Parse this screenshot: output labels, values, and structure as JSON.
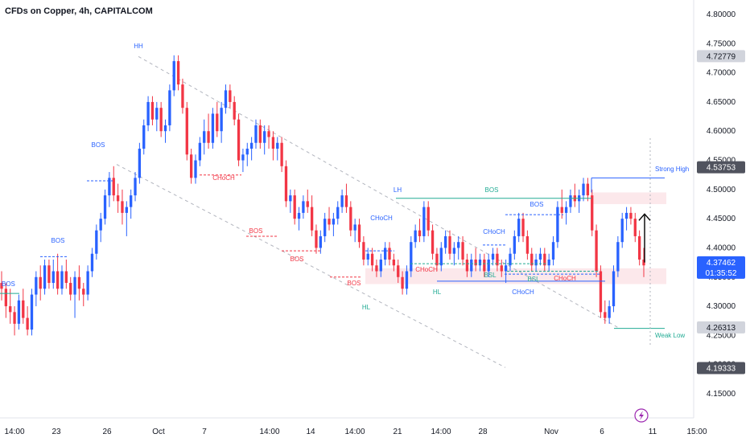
{
  "chart_data": {
    "type": "candlestick",
    "title": "CFDs on Copper, 4h, CAPITALCOM",
    "ylim": [
      4.12,
      4.82
    ],
    "y_ticks": [
      "4.80000",
      "4.75000",
      "4.70000",
      "4.65000",
      "4.60000",
      "4.55000",
      "4.50000",
      "4.45000",
      "4.40000",
      "4.35000",
      "4.30000",
      "4.25000",
      "4.20000",
      "4.15000"
    ],
    "x_ticks": [
      "14:00",
      "23",
      "26",
      "Oct",
      "7",
      "14:00",
      "14",
      "14:00",
      "21",
      "14:00",
      "28",
      "Nov",
      "6",
      "11",
      "15:00"
    ],
    "price_tags": [
      {
        "value": 4.72779,
        "label": "4.72779",
        "style": "gray"
      },
      {
        "value": 4.53753,
        "label": "4.53753",
        "style": "dark"
      },
      {
        "value": 4.37462,
        "label": "4.37462",
        "style": "blue",
        "sub": "01:35:52"
      },
      {
        "value": 4.26313,
        "label": "4.26313",
        "style": "gray"
      },
      {
        "value": 4.19333,
        "label": "4.19333",
        "style": "dark"
      }
    ],
    "labels": {
      "hh": "HH",
      "lh": "LH",
      "hl": "HL",
      "hl2": "HL",
      "bos": "BOS",
      "choch": "CHoCH",
      "bsl": "BSL",
      "strong_high": "Strong High",
      "weak_low": "Weak Low"
    },
    "colors": {
      "up": "#2962ff",
      "down": "#f23645",
      "structure_green": "#22ab94",
      "zone": "#fce4e8"
    },
    "candles": [
      [
        4.34,
        4.36,
        4.31,
        4.33
      ],
      [
        4.33,
        4.34,
        4.28,
        4.3
      ],
      [
        4.3,
        4.33,
        4.27,
        4.29
      ],
      [
        4.29,
        4.3,
        4.25,
        4.27
      ],
      [
        4.27,
        4.32,
        4.26,
        4.31
      ],
      [
        4.31,
        4.33,
        4.27,
        4.28
      ],
      [
        4.28,
        4.3,
        4.25,
        4.26
      ],
      [
        4.26,
        4.33,
        4.25,
        4.32
      ],
      [
        4.32,
        4.36,
        4.3,
        4.35
      ],
      [
        4.35,
        4.37,
        4.31,
        4.33
      ],
      [
        4.33,
        4.38,
        4.32,
        4.37
      ],
      [
        4.37,
        4.38,
        4.33,
        4.34
      ],
      [
        4.34,
        4.38,
        4.33,
        4.36
      ],
      [
        4.36,
        4.39,
        4.32,
        4.33
      ],
      [
        4.33,
        4.37,
        4.32,
        4.36
      ],
      [
        4.36,
        4.38,
        4.33,
        4.34
      ],
      [
        4.34,
        4.35,
        4.31,
        4.32
      ],
      [
        4.32,
        4.36,
        4.28,
        4.35
      ],
      [
        4.35,
        4.37,
        4.31,
        4.33
      ],
      [
        4.33,
        4.34,
        4.3,
        4.32
      ],
      [
        4.32,
        4.37,
        4.31,
        4.36
      ],
      [
        4.36,
        4.4,
        4.35,
        4.39
      ],
      [
        4.39,
        4.44,
        4.38,
        4.43
      ],
      [
        4.43,
        4.46,
        4.41,
        4.45
      ],
      [
        4.45,
        4.5,
        4.44,
        4.49
      ],
      [
        4.49,
        4.53,
        4.47,
        4.52
      ],
      [
        4.52,
        4.54,
        4.48,
        4.49
      ],
      [
        4.49,
        4.51,
        4.46,
        4.48
      ],
      [
        4.48,
        4.5,
        4.44,
        4.46
      ],
      [
        4.46,
        4.48,
        4.42,
        4.47
      ],
      [
        4.47,
        4.5,
        4.45,
        4.49
      ],
      [
        4.49,
        4.53,
        4.48,
        4.52
      ],
      [
        4.52,
        4.58,
        4.51,
        4.57
      ],
      [
        4.57,
        4.62,
        4.56,
        4.61
      ],
      [
        4.61,
        4.66,
        4.6,
        4.65
      ],
      [
        4.65,
        4.66,
        4.61,
        4.62
      ],
      [
        4.62,
        4.65,
        4.6,
        4.64
      ],
      [
        4.64,
        4.65,
        4.59,
        4.6
      ],
      [
        4.6,
        4.62,
        4.58,
        4.61
      ],
      [
        4.61,
        4.68,
        4.6,
        4.67
      ],
      [
        4.67,
        4.73,
        4.66,
        4.72
      ],
      [
        4.72,
        4.73,
        4.67,
        4.68
      ],
      [
        4.68,
        4.69,
        4.63,
        4.64
      ],
      [
        4.64,
        4.65,
        4.55,
        4.56
      ],
      [
        4.56,
        4.57,
        4.51,
        4.52
      ],
      [
        4.52,
        4.56,
        4.51,
        4.55
      ],
      [
        4.55,
        4.59,
        4.54,
        4.58
      ],
      [
        4.58,
        4.62,
        4.56,
        4.6
      ],
      [
        4.6,
        4.63,
        4.57,
        4.58
      ],
      [
        4.58,
        4.64,
        4.57,
        4.63
      ],
      [
        4.63,
        4.65,
        4.59,
        4.6
      ],
      [
        4.6,
        4.65,
        4.58,
        4.64
      ],
      [
        4.64,
        4.68,
        4.63,
        4.67
      ],
      [
        4.67,
        4.68,
        4.64,
        4.65
      ],
      [
        4.65,
        4.66,
        4.61,
        4.62
      ],
      [
        4.62,
        4.63,
        4.54,
        4.55
      ],
      [
        4.55,
        4.57,
        4.53,
        4.56
      ],
      [
        4.56,
        4.58,
        4.54,
        4.57
      ],
      [
        4.57,
        4.59,
        4.55,
        4.58
      ],
      [
        4.58,
        4.62,
        4.57,
        4.61
      ],
      [
        4.61,
        4.62,
        4.57,
        4.58
      ],
      [
        4.58,
        4.61,
        4.56,
        4.6
      ],
      [
        4.6,
        4.61,
        4.57,
        4.59
      ],
      [
        4.59,
        4.6,
        4.55,
        4.57
      ],
      [
        4.57,
        4.59,
        4.55,
        4.58
      ],
      [
        4.58,
        4.59,
        4.53,
        4.54
      ],
      [
        4.54,
        4.55,
        4.47,
        4.48
      ],
      [
        4.48,
        4.5,
        4.46,
        4.49
      ],
      [
        4.49,
        4.5,
        4.44,
        4.45
      ],
      [
        4.45,
        4.47,
        4.43,
        4.46
      ],
      [
        4.46,
        4.49,
        4.45,
        4.48
      ],
      [
        4.48,
        4.5,
        4.46,
        4.47
      ],
      [
        4.47,
        4.49,
        4.42,
        4.43
      ],
      [
        4.43,
        4.44,
        4.39,
        4.4
      ],
      [
        4.4,
        4.43,
        4.39,
        4.42
      ],
      [
        4.42,
        4.46,
        4.41,
        4.45
      ],
      [
        4.45,
        4.47,
        4.43,
        4.44
      ],
      [
        4.44,
        4.46,
        4.42,
        4.45
      ],
      [
        4.45,
        4.48,
        4.44,
        4.47
      ],
      [
        4.47,
        4.5,
        4.46,
        4.49
      ],
      [
        4.49,
        4.51,
        4.46,
        4.47
      ],
      [
        4.47,
        4.48,
        4.42,
        4.43
      ],
      [
        4.43,
        4.45,
        4.41,
        4.44
      ],
      [
        4.44,
        4.45,
        4.4,
        4.41
      ],
      [
        4.41,
        4.42,
        4.37,
        4.38
      ],
      [
        4.38,
        4.4,
        4.37,
        4.39
      ],
      [
        4.39,
        4.4,
        4.36,
        4.37
      ],
      [
        4.37,
        4.38,
        4.35,
        4.36
      ],
      [
        4.36,
        4.39,
        4.35,
        4.38
      ],
      [
        4.38,
        4.41,
        4.37,
        4.4
      ],
      [
        4.4,
        4.41,
        4.37,
        4.38
      ],
      [
        4.38,
        4.39,
        4.36,
        4.37
      ],
      [
        4.37,
        4.38,
        4.34,
        4.35
      ],
      [
        4.35,
        4.36,
        4.32,
        4.33
      ],
      [
        4.33,
        4.37,
        4.32,
        4.36
      ],
      [
        4.36,
        4.42,
        4.35,
        4.41
      ],
      [
        4.41,
        4.44,
        4.4,
        4.43
      ],
      [
        4.43,
        4.45,
        4.41,
        4.42
      ],
      [
        4.42,
        4.48,
        4.41,
        4.47
      ],
      [
        4.47,
        4.48,
        4.42,
        4.43
      ],
      [
        4.43,
        4.44,
        4.38,
        4.39
      ],
      [
        4.39,
        4.4,
        4.36,
        4.37
      ],
      [
        4.37,
        4.41,
        4.36,
        4.4
      ],
      [
        4.4,
        4.43,
        4.39,
        4.42
      ],
      [
        4.42,
        4.43,
        4.38,
        4.39
      ],
      [
        4.39,
        4.41,
        4.37,
        4.4
      ],
      [
        4.4,
        4.42,
        4.38,
        4.41
      ],
      [
        4.41,
        4.42,
        4.37,
        4.38
      ],
      [
        4.38,
        4.39,
        4.35,
        4.36
      ],
      [
        4.36,
        4.39,
        4.35,
        4.38
      ],
      [
        4.38,
        4.4,
        4.36,
        4.37
      ],
      [
        4.37,
        4.39,
        4.36,
        4.38
      ],
      [
        4.38,
        4.39,
        4.35,
        4.36
      ],
      [
        4.36,
        4.39,
        4.35,
        4.38
      ],
      [
        4.38,
        4.4,
        4.37,
        4.39
      ],
      [
        4.39,
        4.4,
        4.36,
        4.37
      ],
      [
        4.37,
        4.38,
        4.35,
        4.36
      ],
      [
        4.36,
        4.38,
        4.34,
        4.37
      ],
      [
        4.37,
        4.4,
        4.36,
        4.39
      ],
      [
        4.39,
        4.43,
        4.38,
        4.42
      ],
      [
        4.42,
        4.46,
        4.41,
        4.45
      ],
      [
        4.45,
        4.46,
        4.41,
        4.42
      ],
      [
        4.42,
        4.43,
        4.38,
        4.39
      ],
      [
        4.39,
        4.4,
        4.36,
        4.37
      ],
      [
        4.37,
        4.39,
        4.36,
        4.38
      ],
      [
        4.38,
        4.4,
        4.37,
        4.39
      ],
      [
        4.39,
        4.4,
        4.36,
        4.37
      ],
      [
        4.37,
        4.39,
        4.36,
        4.38
      ],
      [
        4.38,
        4.42,
        4.37,
        4.41
      ],
      [
        4.41,
        4.48,
        4.4,
        4.47
      ],
      [
        4.47,
        4.5,
        4.45,
        4.46
      ],
      [
        4.46,
        4.48,
        4.44,
        4.47
      ],
      [
        4.47,
        4.5,
        4.46,
        4.49
      ],
      [
        4.49,
        4.51,
        4.47,
        4.48
      ],
      [
        4.48,
        4.5,
        4.46,
        4.49
      ],
      [
        4.49,
        4.52,
        4.48,
        4.51
      ],
      [
        4.51,
        4.52,
        4.48,
        4.49
      ],
      [
        4.49,
        4.5,
        4.42,
        4.43
      ],
      [
        4.43,
        4.44,
        4.35,
        4.36
      ],
      [
        4.36,
        4.37,
        4.28,
        4.29
      ],
      [
        4.29,
        4.31,
        4.27,
        4.28
      ],
      [
        4.28,
        4.31,
        4.27,
        4.3
      ],
      [
        4.3,
        4.37,
        4.29,
        4.36
      ],
      [
        4.36,
        4.42,
        4.35,
        4.41
      ],
      [
        4.41,
        4.46,
        4.4,
        4.45
      ],
      [
        4.45,
        4.47,
        4.43,
        4.46
      ],
      [
        4.46,
        4.47,
        4.44,
        4.45
      ],
      [
        4.45,
        4.46,
        4.41,
        4.42
      ],
      [
        4.42,
        4.43,
        4.37,
        4.38
      ],
      [
        4.38,
        4.4,
        4.35,
        4.37
      ]
    ]
  }
}
